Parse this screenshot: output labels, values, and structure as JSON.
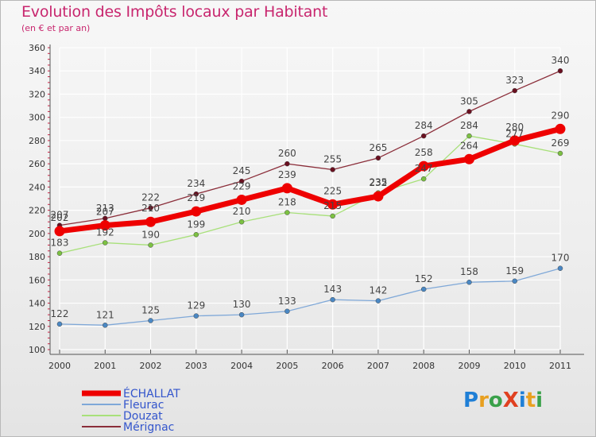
{
  "title": "Evolution des Impôts locaux par Habitant",
  "subtitle": "(en € et par an)",
  "logo_text": "ProXiti",
  "chart_data": {
    "type": "line",
    "title": "Evolution des Impôts locaux par Habitant",
    "subtitle": "(en € et par an)",
    "xlabel": "",
    "ylabel": "",
    "x": [
      "2000",
      "2001",
      "2002",
      "2003",
      "2004",
      "2005",
      "2006",
      "2007",
      "2008",
      "2009",
      "2010",
      "2011"
    ],
    "ylim": [
      100,
      360
    ],
    "yticks": [
      100,
      120,
      140,
      160,
      180,
      200,
      220,
      240,
      260,
      280,
      300,
      320,
      340,
      360
    ],
    "grid": true,
    "legend_position": "bottom-left",
    "series": [
      {
        "name": "Mérignac",
        "color": "#8b2e3a",
        "point_color": "#6a1020",
        "width": 1.3,
        "radius": 3,
        "values": [
          207,
          213,
          222,
          234,
          245,
          260,
          255,
          265,
          284,
          305,
          323,
          340
        ]
      },
      {
        "name": "Douzat",
        "color": "#a8e07a",
        "point_color": "#7cc142",
        "width": 1.3,
        "radius": 3,
        "values": [
          183,
          192,
          190,
          199,
          210,
          218,
          215,
          235,
          247,
          284,
          277,
          269
        ]
      },
      {
        "name": "Fleurac",
        "color": "#7fa8d8",
        "point_color": "#4a88c4",
        "width": 1.3,
        "radius": 3,
        "values": [
          122,
          121,
          125,
          129,
          130,
          133,
          143,
          142,
          152,
          158,
          159,
          170
        ]
      },
      {
        "name": "ÉCHALLAT",
        "color": "#ee0000",
        "point_color": "#ee0000",
        "width": 7,
        "radius": 6.5,
        "values": [
          202,
          207,
          210,
          219,
          229,
          239,
          225,
          232,
          258,
          264,
          280,
          290
        ]
      }
    ]
  },
  "legend": [
    {
      "name": "ÉCHALLAT",
      "color": "#ee0000"
    },
    {
      "name": "Fleurac",
      "color": "#7fa8d8"
    },
    {
      "name": "Douzat",
      "color": "#a8e07a"
    },
    {
      "name": "Mérignac",
      "color": "#8b2e3a"
    }
  ]
}
